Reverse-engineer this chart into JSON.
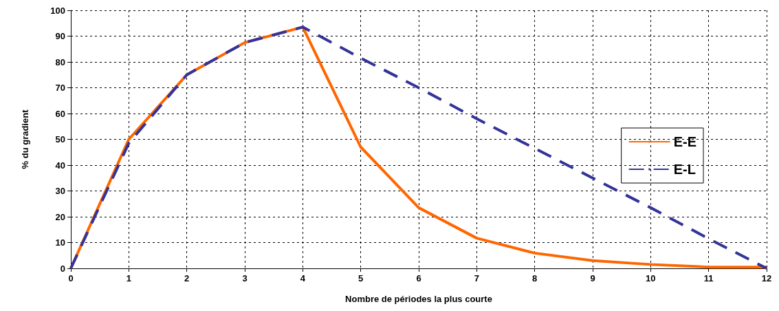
{
  "chart_data": {
    "type": "line",
    "xlabel": "Nombre de périodes la plus courte",
    "ylabel": "% du gradient",
    "x": [
      0,
      1,
      2,
      3,
      4,
      5,
      6,
      7,
      8,
      9,
      10,
      11,
      12
    ],
    "series": [
      {
        "name": "E-E",
        "color": "#ff6600",
        "line_style": "solid",
        "values": [
          0,
          50,
          75,
          87.5,
          93.5,
          47,
          23.5,
          11.7,
          5.9,
          3,
          1.5,
          0.5,
          0.5
        ]
      },
      {
        "name": "E-L",
        "color": "#333399",
        "line_style": "dashed",
        "values": [
          0,
          48.5,
          75,
          87.5,
          93.5,
          81.5,
          70,
          58,
          46.5,
          35,
          23.5,
          11.5,
          0
        ]
      }
    ],
    "xlim": [
      0,
      12
    ],
    "xticks": [
      0,
      1,
      2,
      3,
      4,
      5,
      6,
      7,
      8,
      9,
      10,
      11,
      12
    ],
    "ylim": [
      0,
      100
    ],
    "yticks": [
      0,
      10,
      20,
      30,
      40,
      50,
      60,
      70,
      80,
      90,
      100
    ],
    "grid": true,
    "legend": "right",
    "marker": "none"
  }
}
